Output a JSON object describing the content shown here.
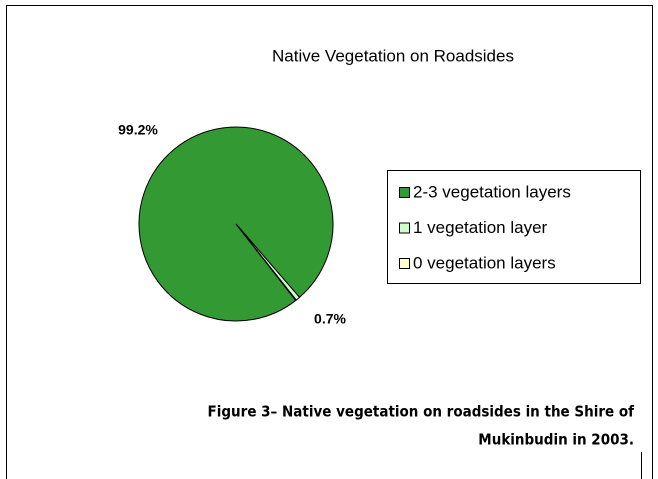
{
  "chart_data": {
    "type": "pie",
    "title": "Native Vegetation on Roadsides",
    "categories": [
      "2-3 vegetation layers",
      "1 vegetation layer",
      "0 vegetation layers"
    ],
    "values": [
      99.2,
      0.7,
      0.1
    ],
    "value_labels": [
      "99.2%",
      "0.7%",
      null
    ],
    "colors": [
      "#339933",
      "#ccffcc",
      "#ffffcc"
    ],
    "legend": "right"
  },
  "caption": [
    "Figure 3– Native vegetation on roadsides in the Shire of",
    "Mukinbudin in 2003."
  ]
}
